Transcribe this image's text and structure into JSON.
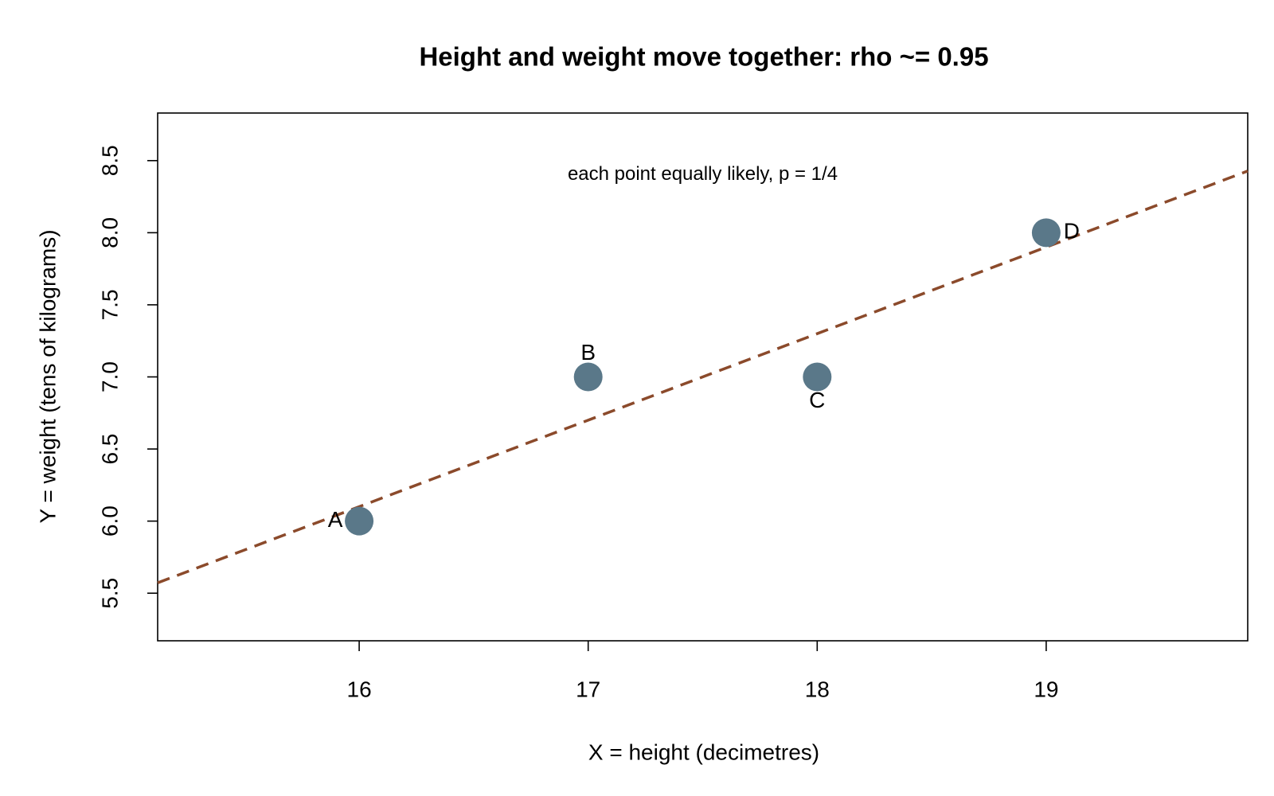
{
  "chart_data": {
    "type": "scatter",
    "title": "Height and weight move together: rho ~= 0.95",
    "x_label": "X = height (decimetres)",
    "y_label": "Y = weight (tens of kilograms)",
    "annotation": {
      "text": "each point equally likely, p = 1/4",
      "x": 17.5,
      "y": 8.4
    },
    "points": {
      "x": [
        16,
        17,
        18,
        19
      ],
      "values": [
        6,
        7,
        7,
        8
      ],
      "labels": [
        "A",
        "B",
        "C",
        "D"
      ],
      "label_pos": [
        "left",
        "top",
        "bottom",
        "right"
      ],
      "color": "#5a7889"
    },
    "fit_line": {
      "x": [
        15.12,
        19.88
      ],
      "values": [
        5.572,
        8.428
      ],
      "color": "#8b4a2b",
      "dashed": true
    },
    "xlim": [
      15.12,
      19.88
    ],
    "ylim": [
      5.17,
      8.83
    ],
    "xticks": [
      16,
      17,
      18,
      19
    ],
    "yticks": [
      {
        "value": 5.5,
        "label": "5.5"
      },
      {
        "value": 6,
        "label": "6.0"
      },
      {
        "value": 6.5,
        "label": "6.5"
      },
      {
        "value": 7,
        "label": "7.0"
      },
      {
        "value": 7.5,
        "label": "7.5"
      },
      {
        "value": 8,
        "label": "8.0"
      },
      {
        "value": 8.5,
        "label": "8.5"
      }
    ],
    "grid": false
  }
}
